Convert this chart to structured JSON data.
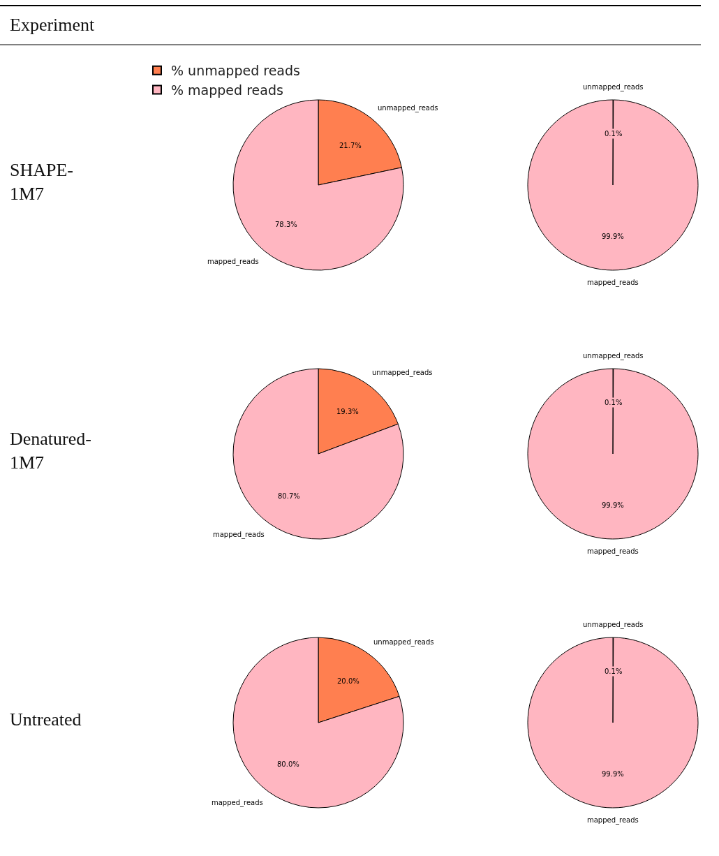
{
  "chart_data": [
    {
      "type": "other",
      "title": "Experiment",
      "annotations": [
        "SHAPE-\n1M7",
        "Denatured-\n1M7",
        "Untreated"
      ]
    },
    {
      "type": "pie",
      "categories": [
        "% unmapped reads",
        "% mapped reads"
      ],
      "values": [
        21.7,
        78.3
      ],
      "value_labels": [
        "21.7%",
        "78.3%"
      ],
      "colors": [
        "#ff7f50",
        "#ffb6c1"
      ],
      "legend": "top left",
      "annotations": [
        "unmapped_reads",
        "mapped_reads"
      ]
    },
    {
      "type": "pie",
      "categories": [
        "unmapped_reads",
        "mapped_reads"
      ],
      "values": [
        0.1,
        99.9
      ],
      "value_labels": [
        "0.1%",
        "99.9%"
      ],
      "colors": [
        "#ff7f50",
        "#ffb6c1"
      ]
    },
    {
      "type": "pie",
      "categories": [
        "unmapped_reads",
        "mapped_reads"
      ],
      "values": [
        19.3,
        80.7
      ],
      "value_labels": [
        "19.3%",
        "80.7%"
      ],
      "colors": [
        "#ff7f50",
        "#ffb6c1"
      ]
    },
    {
      "type": "pie",
      "categories": [
        "unmapped_reads",
        "mapped_reads"
      ],
      "values": [
        0.1,
        99.9
      ],
      "value_labels": [
        "0.1%",
        "99.9%"
      ],
      "colors": [
        "#ff7f50",
        "#ffb6c1"
      ]
    },
    {
      "type": "pie",
      "categories": [
        "unmapped_reads",
        "mapped_reads"
      ],
      "values": [
        20.0,
        80.0
      ],
      "value_labels": [
        "20.0%",
        "80.0%"
      ],
      "colors": [
        "#ff7f50",
        "#ffb6c1"
      ]
    },
    {
      "type": "pie",
      "categories": [
        "unmapped_reads",
        "mapped_reads"
      ],
      "values": [
        0.1,
        99.9
      ],
      "value_labels": [
        "0.1%",
        "99.9%"
      ],
      "colors": [
        "#ff7f50",
        "#ffb6c1"
      ]
    }
  ]
}
